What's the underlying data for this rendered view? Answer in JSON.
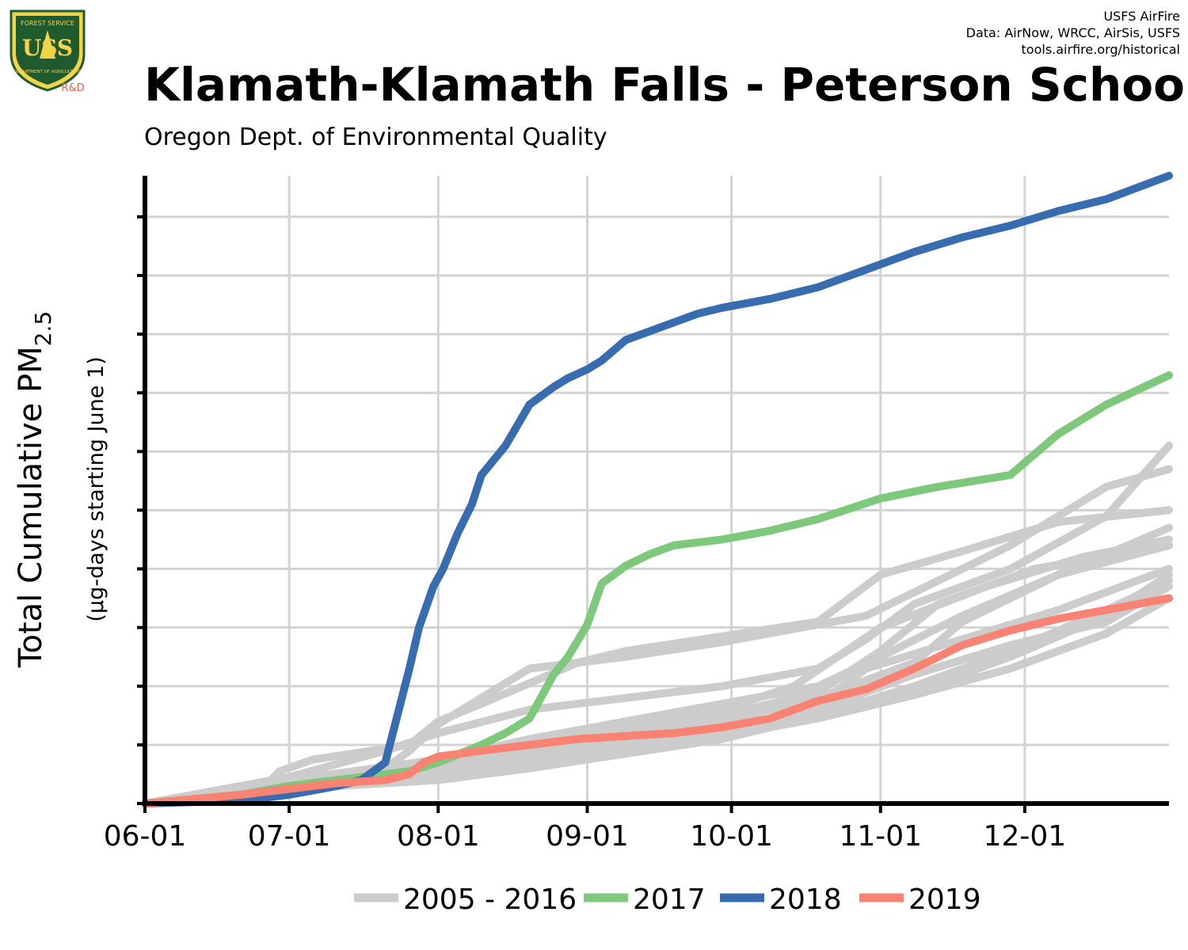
{
  "credits": {
    "line1": "USFS AirFire",
    "line2": "Data: AirNow, WRCC, AirSis, USFS",
    "line3": "tools.airfire.org/historical"
  },
  "logo": {
    "top_text": "FOREST SERVICE",
    "letters": "USS",
    "bottom_text": "DEPARTMENT OF AGRICULTURE",
    "badge": "R&D"
  },
  "title": "Klamath-Klamath Falls - Peterson School",
  "subtitle": "Oregon Dept. of Environmental Quality",
  "colors": {
    "historic": "#cccccc",
    "y2017": "#7dc87a",
    "y2018": "#386cb0",
    "y2019": "#f98273",
    "logo_green": "#1f5b2e",
    "logo_gold": "#f3d34a",
    "badge": "#e8604c"
  },
  "chart_data": {
    "type": "line",
    "xlabel": "",
    "ylabel": "Total Cumulative PM",
    "ylabel_sub": "2.5",
    "ylabel2": "(µg-days starting June 1)",
    "x_ticks": [
      "06-01",
      "07-01",
      "08-01",
      "09-01",
      "10-01",
      "11-01",
      "12-01"
    ],
    "x_tick_days": [
      0,
      30,
      61,
      92,
      122,
      153,
      183
    ],
    "xlim": [
      0,
      213
    ],
    "ylim": [
      0,
      10.7
    ],
    "y_unlabeled_ticks": [
      0,
      1,
      2,
      3,
      4,
      5,
      6,
      7,
      8,
      9,
      10
    ],
    "grid": true,
    "legend_position": "bottom",
    "series": [
      {
        "name": "2005 - 2016",
        "color_key": "historic",
        "curves": [
          {
            "x": [
              0,
              25,
              28,
              35,
              55,
              61,
              70,
              90,
              100,
              120,
              140,
              153,
              170,
              190,
              213
            ],
            "y": [
              0,
              0.3,
              0.55,
              0.75,
              1.0,
              1.4,
              1.7,
              2.4,
              2.6,
              2.85,
              3.1,
              3.9,
              4.3,
              4.8,
              5.0
            ]
          },
          {
            "x": [
              0,
              30,
              50,
              61,
              80,
              100,
              120,
              140,
              150,
              160,
              180,
              200,
              213
            ],
            "y": [
              0,
              0.45,
              0.9,
              1.2,
              1.6,
              1.8,
              2.0,
              2.3,
              2.8,
              3.4,
              4.0,
              4.9,
              6.1
            ]
          },
          {
            "x": [
              0,
              30,
              50,
              55,
              61,
              80,
              100,
              120,
              150,
              160,
              180,
              200,
              213
            ],
            "y": [
              0,
              0.35,
              0.6,
              0.9,
              1.35,
              2.3,
              2.5,
              2.75,
              3.2,
              3.6,
              4.4,
              5.4,
              5.7
            ]
          },
          {
            "x": [
              0,
              30,
              61,
              80,
              100,
              120,
              140,
              150,
              170,
              190,
              213
            ],
            "y": [
              0,
              0.3,
              0.5,
              0.9,
              1.0,
              1.2,
              1.7,
              2.3,
              2.8,
              3.3,
              4.0
            ]
          },
          {
            "x": [
              0,
              30,
              61,
              80,
              100,
              120,
              140,
              160,
              180,
              200,
              213
            ],
            "y": [
              0,
              0.25,
              0.45,
              0.65,
              0.9,
              1.2,
              1.6,
              2.2,
              2.7,
              3.1,
              3.7
            ]
          },
          {
            "x": [
              0,
              30,
              61,
              80,
              100,
              120,
              140,
              160,
              170,
              190,
              213
            ],
            "y": [
              0,
              0.3,
              0.55,
              0.8,
              1.1,
              1.4,
              1.8,
              2.4,
              3.1,
              3.9,
              4.4
            ]
          },
          {
            "x": [
              0,
              30,
              61,
              80,
              100,
              120,
              135,
              153,
              175,
              195,
              213
            ],
            "y": [
              0,
              0.3,
              0.6,
              1.05,
              1.3,
              1.6,
              2.0,
              3.0,
              3.7,
              4.2,
              4.5
            ]
          },
          {
            "x": [
              0,
              30,
              61,
              80,
              100,
              120,
              140,
              153,
              170,
              190,
              213
            ],
            "y": [
              0,
              0.4,
              0.75,
              1.1,
              1.4,
              1.7,
              2.0,
              2.5,
              3.2,
              3.9,
              4.7
            ]
          },
          {
            "x": [
              0,
              30,
              61,
              80,
              100,
              120,
              140,
              160,
              180,
              200,
              213
            ],
            "y": [
              0,
              0.3,
              0.55,
              0.75,
              0.95,
              1.2,
              1.5,
              1.9,
              2.5,
              3.2,
              3.9
            ]
          },
          {
            "x": [
              0,
              30,
              61,
              80,
              100,
              120,
              140,
              153,
              165,
              185,
              213
            ],
            "y": [
              0,
              0.35,
              0.65,
              0.9,
              1.2,
              1.5,
              1.9,
              2.6,
              3.4,
              4.0,
              4.4
            ]
          },
          {
            "x": [
              0,
              30,
              61,
              80,
              100,
              120,
              140,
              160,
              180,
              200,
              213
            ],
            "y": [
              0,
              0.25,
              0.4,
              0.6,
              0.85,
              1.1,
              1.5,
              2.0,
              2.6,
              3.3,
              3.8
            ]
          },
          {
            "x": [
              0,
              30,
              61,
              80,
              100,
              120,
              140,
              160,
              180,
              200,
              213
            ],
            "y": [
              0,
              0.3,
              0.5,
              0.7,
              0.9,
              1.15,
              1.45,
              1.85,
              2.3,
              2.9,
              3.5
            ]
          }
        ]
      },
      {
        "name": "2017",
        "color_key": "y2017",
        "x": [
          0,
          20,
          30,
          45,
          55,
          61,
          70,
          75,
          80,
          85,
          88,
          92,
          95,
          100,
          105,
          110,
          120,
          130,
          140,
          153,
          165,
          180,
          190,
          200,
          213
        ],
        "y": [
          0,
          0.15,
          0.3,
          0.45,
          0.55,
          0.7,
          1.0,
          1.2,
          1.45,
          2.2,
          2.5,
          3.05,
          3.75,
          4.05,
          4.25,
          4.4,
          4.5,
          4.65,
          4.85,
          5.2,
          5.4,
          5.6,
          6.3,
          6.8,
          7.3
        ]
      },
      {
        "name": "2018",
        "color_key": "y2018",
        "x": [
          0,
          20,
          30,
          40,
          45,
          50,
          55,
          57,
          60,
          62,
          65,
          68,
          70,
          75,
          80,
          85,
          88,
          92,
          95,
          100,
          110,
          115,
          120,
          130,
          140,
          150,
          160,
          170,
          180,
          190,
          200,
          213
        ],
        "y": [
          0,
          0.05,
          0.15,
          0.3,
          0.4,
          0.7,
          2.3,
          3.0,
          3.7,
          4.0,
          4.6,
          5.1,
          5.6,
          6.1,
          6.8,
          7.1,
          7.25,
          7.4,
          7.55,
          7.9,
          8.2,
          8.35,
          8.45,
          8.6,
          8.8,
          9.1,
          9.4,
          9.65,
          9.85,
          10.1,
          10.3,
          10.7
        ]
      },
      {
        "name": "2019",
        "color_key": "y2019",
        "x": [
          0,
          20,
          30,
          40,
          50,
          55,
          58,
          61,
          70,
          80,
          90,
          100,
          110,
          120,
          130,
          140,
          150,
          160,
          170,
          180,
          190,
          200,
          213
        ],
        "y": [
          0,
          0.15,
          0.25,
          0.35,
          0.4,
          0.5,
          0.7,
          0.8,
          0.9,
          1.0,
          1.1,
          1.15,
          1.2,
          1.3,
          1.45,
          1.75,
          1.95,
          2.3,
          2.7,
          2.95,
          3.15,
          3.3,
          3.5
        ]
      }
    ]
  }
}
